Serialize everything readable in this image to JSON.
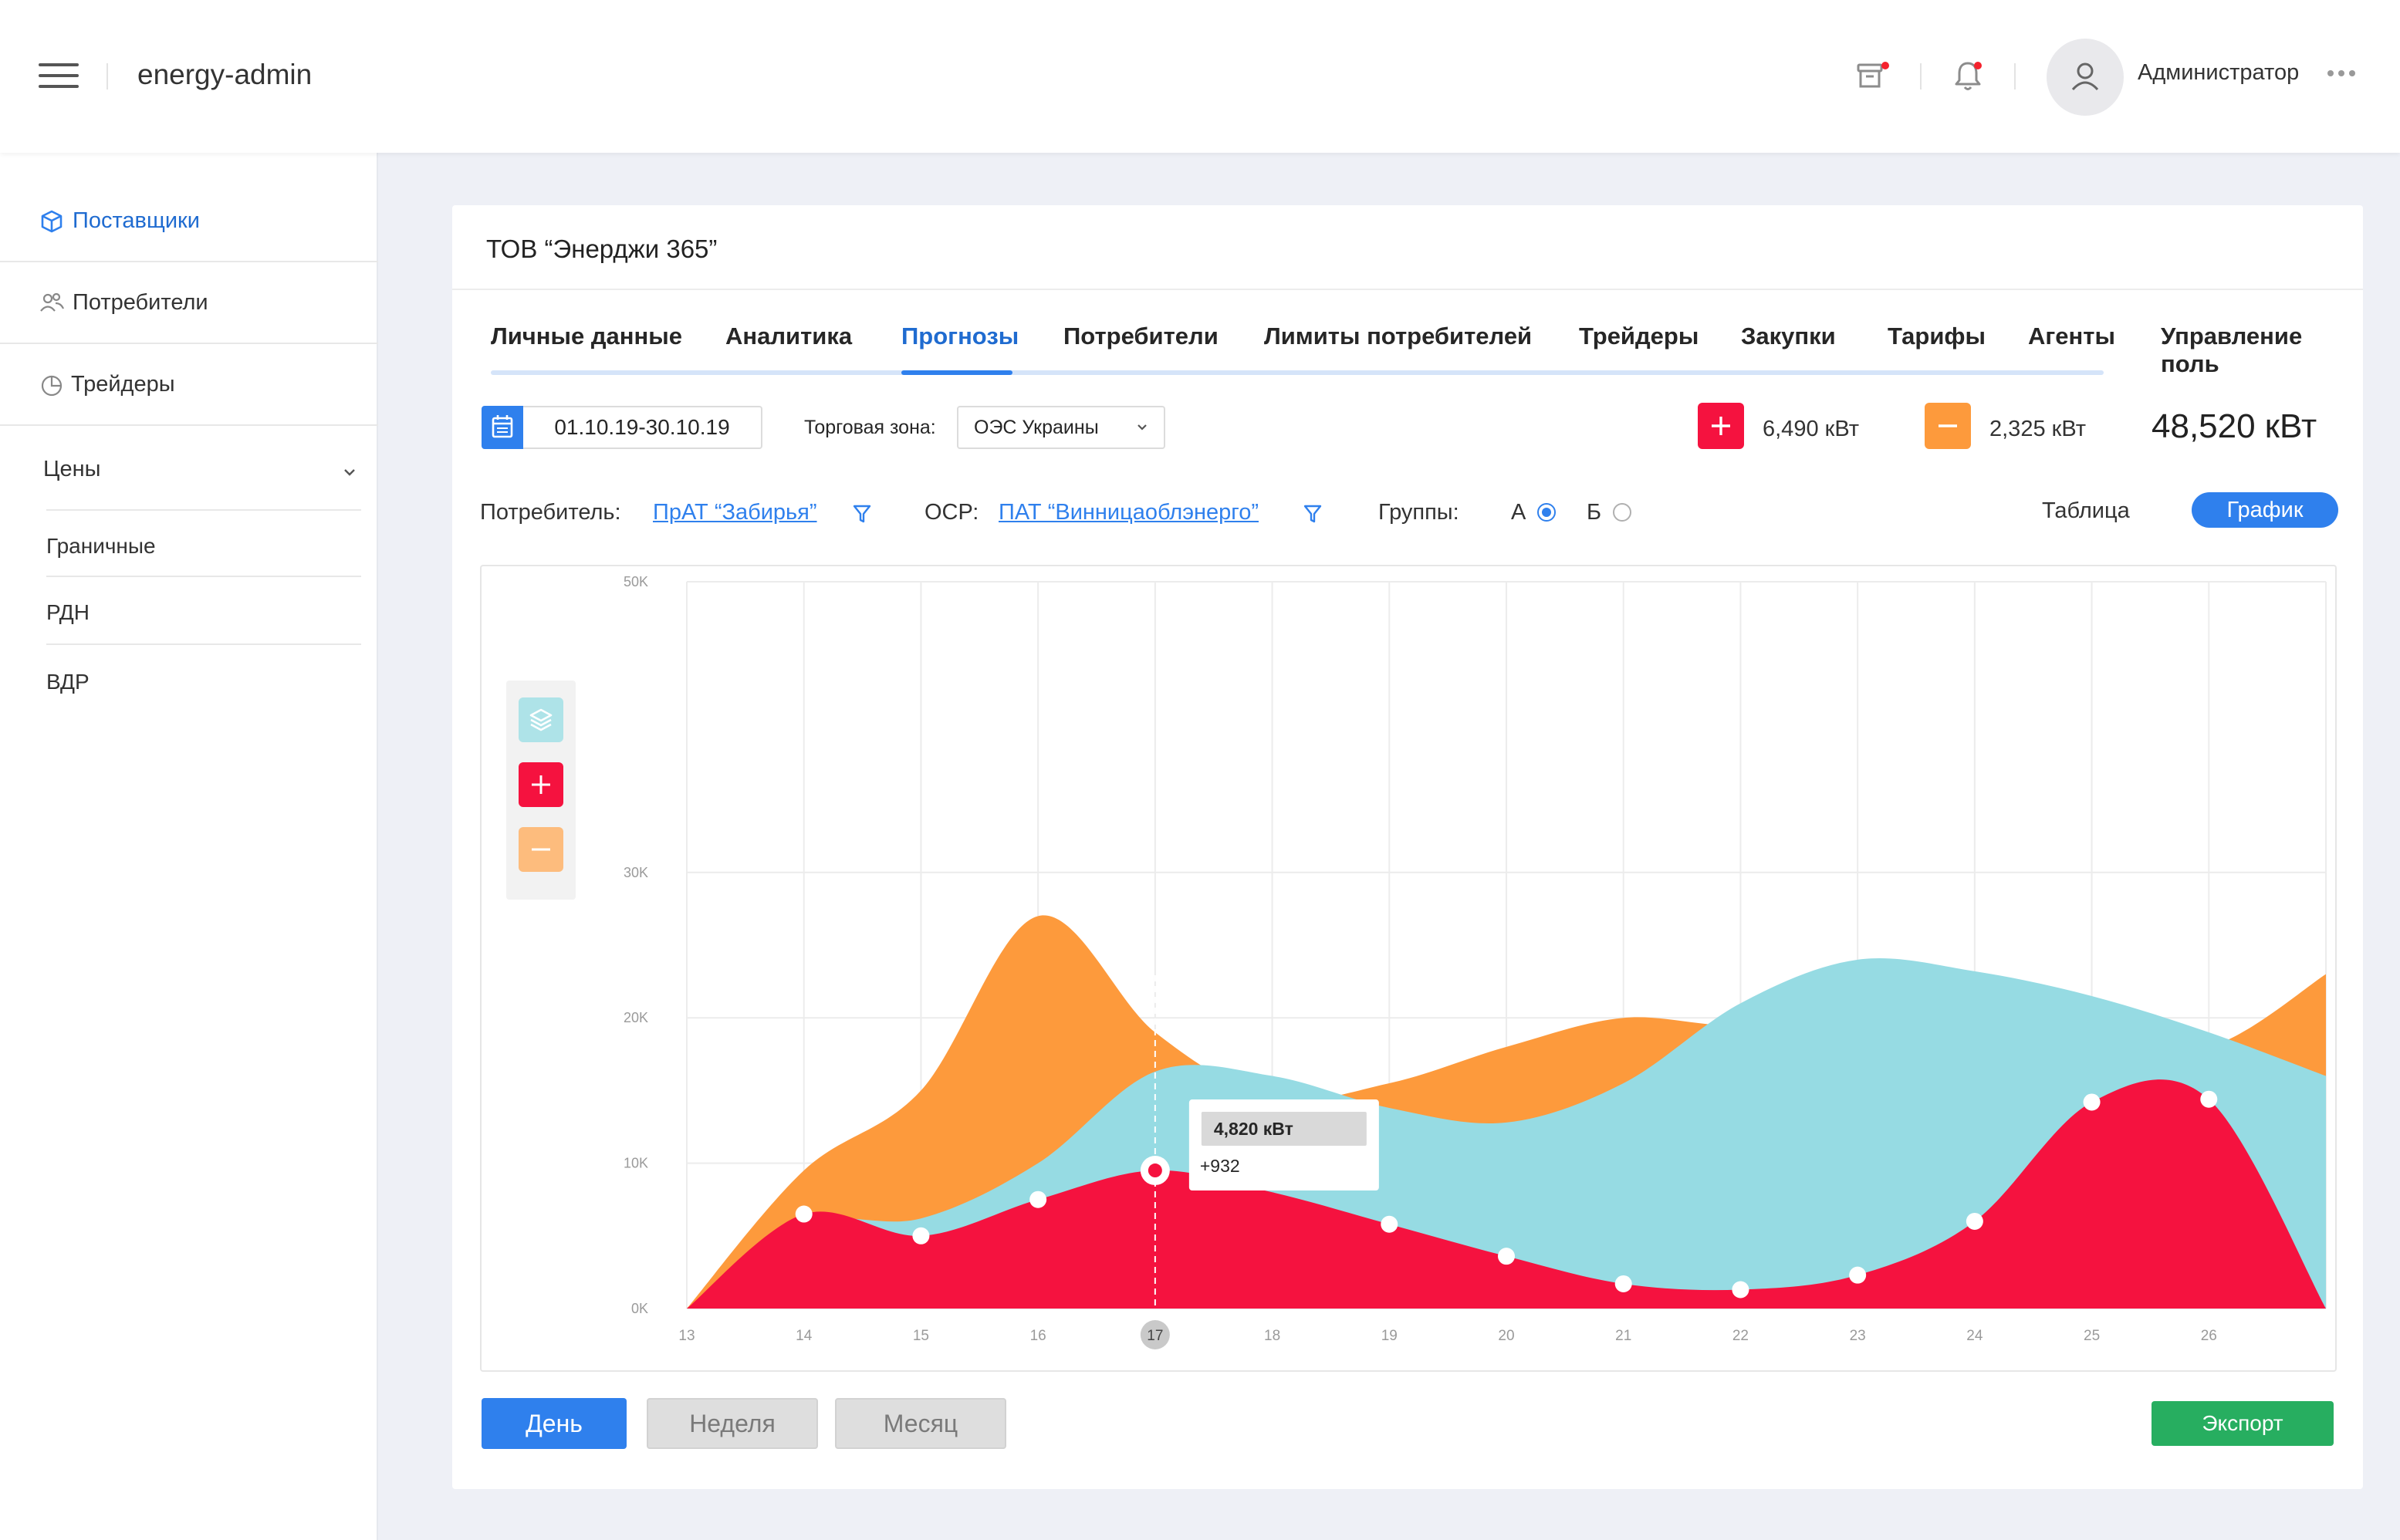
{
  "header": {
    "brand": "energy-admin",
    "user_name": "Администратор"
  },
  "sidebar": {
    "items": [
      {
        "label": "Поставщики"
      },
      {
        "label": "Потребители"
      },
      {
        "label": "Трейдеры"
      }
    ],
    "prices_label": "Цены",
    "prices_sub": [
      "Граничные",
      "РДН",
      "ВДР"
    ]
  },
  "card": {
    "company": "ТОВ “Энерджи 365”",
    "tabs": [
      "Личные данные",
      "Аналитика",
      "Прогнозы",
      "Потребители",
      "Лимиты потребителей",
      "Трейдеры",
      "Закупки",
      "Тарифы",
      "Агенты",
      "Управление поль"
    ],
    "active_tab": 2
  },
  "controls": {
    "date_range": "01.10.19-30.10.19",
    "zone_label": "Торговая зона:",
    "zone_value": "ОЭС Украины",
    "plus_value": "6,490 кВт",
    "minus_value": "2,325 кВт",
    "total": "48,520 кВт"
  },
  "filters": {
    "consumer_label": "Потребитель:",
    "consumer_value": "ПрАТ “Забирья”",
    "osr_label": "ОСР:",
    "osr_value": "ПАТ “Винницаоблэнерго”",
    "groups_label": "Группы:",
    "group_a": "А",
    "group_b": "Б",
    "group_selected": "А",
    "view_table": "Таблица",
    "view_chart": "График"
  },
  "chart_data": {
    "type": "area",
    "x": [
      13,
      14,
      15,
      16,
      17,
      18,
      19,
      20,
      21,
      22,
      23,
      24,
      25,
      26
    ],
    "ylim": [
      0,
      50000
    ],
    "yticks": [
      "50K",
      "30K",
      "20K",
      "10K",
      "0K"
    ],
    "ytick_values": [
      50000,
      30000,
      20000,
      10000,
      0
    ],
    "highlight_x": 17,
    "grid": true,
    "series": [
      {
        "color": "#fd9a3c",
        "x": [
          13,
          14,
          15,
          16,
          17,
          18,
          19,
          20,
          21,
          22,
          23,
          24,
          25,
          26,
          27
        ],
        "values": [
          0,
          9500,
          15000,
          27000,
          19000,
          14500,
          15500,
          18000,
          20000,
          19500,
          21000,
          20500,
          19000,
          18000,
          23000
        ]
      },
      {
        "color": "#96dbe3",
        "x": [
          13,
          14,
          15,
          16,
          17,
          18,
          19,
          20,
          21,
          22,
          23,
          24,
          25,
          26,
          27
        ],
        "values": [
          0,
          5800,
          6200,
          10000,
          16300,
          16000,
          13800,
          12800,
          15500,
          21000,
          24000,
          23200,
          21500,
          19000,
          16000
        ]
      },
      {
        "color": "#f5123f",
        "x": [
          13,
          14,
          15,
          16,
          17,
          18,
          19,
          20,
          21,
          22,
          23,
          24,
          25,
          26,
          27
        ],
        "values": [
          0,
          6500,
          5000,
          7500,
          9500,
          8000,
          5800,
          3600,
          1700,
          1300,
          2300,
          6000,
          14200,
          14400,
          0
        ],
        "points_x": [
          14,
          15,
          16,
          17,
          19,
          20,
          21,
          22,
          23,
          24,
          25,
          26
        ],
        "points_y": [
          6500,
          5000,
          7500,
          9500,
          5800,
          3600,
          1700,
          1300,
          2300,
          6000,
          14200,
          14400
        ]
      }
    ],
    "tooltip": {
      "value": "4,820 кВт",
      "delta": "+932"
    }
  },
  "bottom": {
    "day": "День",
    "week": "Неделя",
    "month": "Месяц",
    "export": "Экспорт"
  }
}
